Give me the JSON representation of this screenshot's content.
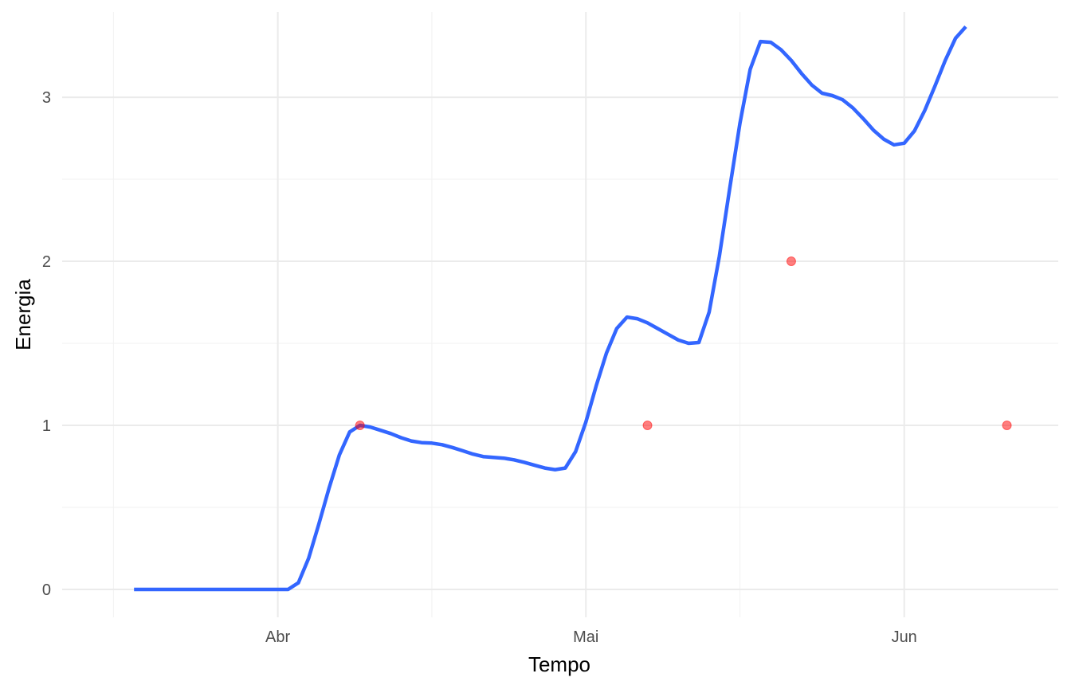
{
  "chart_data": {
    "type": "line",
    "title": "",
    "xlabel": "Tempo",
    "ylabel": "Energia",
    "grid": true,
    "legend": "none",
    "x_axis": {
      "type": "date",
      "range": [
        "2021-03-11",
        "2021-06-16"
      ],
      "ticks": [
        {
          "date": "2021-04-01",
          "label": "Abr"
        },
        {
          "date": "2021-05-01",
          "label": "Mai"
        },
        {
          "date": "2021-06-01",
          "label": "Jun"
        }
      ],
      "minor_ticks": [
        "2021-03-16",
        "2021-04-16",
        "2021-05-16"
      ]
    },
    "y_axis": {
      "range": [
        -0.17,
        3.52
      ],
      "ticks": [
        0,
        1,
        2,
        3
      ],
      "tick_labels": [
        "0",
        "1",
        "2",
        "3"
      ],
      "minor_ticks": [
        0.5,
        1.5,
        2.5
      ]
    },
    "series": [
      {
        "kind": "line",
        "color": "#3366ff",
        "points": [
          [
            "2021-03-18",
            0.0
          ],
          [
            "2021-03-19",
            0.0
          ],
          [
            "2021-03-20",
            0.0
          ],
          [
            "2021-03-21",
            0.0
          ],
          [
            "2021-03-22",
            0.0
          ],
          [
            "2021-03-23",
            0.0
          ],
          [
            "2021-03-24",
            0.0
          ],
          [
            "2021-03-25",
            0.0
          ],
          [
            "2021-03-26",
            0.0
          ],
          [
            "2021-03-27",
            0.0
          ],
          [
            "2021-03-28",
            0.0
          ],
          [
            "2021-03-29",
            0.0
          ],
          [
            "2021-03-30",
            0.0
          ],
          [
            "2021-03-31",
            0.0
          ],
          [
            "2021-04-01",
            0.0
          ],
          [
            "2021-04-02",
            0.0
          ],
          [
            "2021-04-03",
            0.04
          ],
          [
            "2021-04-04",
            0.19
          ],
          [
            "2021-04-05",
            0.4
          ],
          [
            "2021-04-06",
            0.62
          ],
          [
            "2021-04-07",
            0.82
          ],
          [
            "2021-04-08",
            0.96
          ],
          [
            "2021-04-09",
            1.0
          ],
          [
            "2021-04-10",
            0.99
          ],
          [
            "2021-04-11",
            0.97
          ],
          [
            "2021-04-12",
            0.95
          ],
          [
            "2021-04-13",
            0.925
          ],
          [
            "2021-04-14",
            0.905
          ],
          [
            "2021-04-15",
            0.895
          ],
          [
            "2021-04-16",
            0.892
          ],
          [
            "2021-04-17",
            0.882
          ],
          [
            "2021-04-18",
            0.865
          ],
          [
            "2021-04-19",
            0.845
          ],
          [
            "2021-04-20",
            0.825
          ],
          [
            "2021-04-21",
            0.81
          ],
          [
            "2021-04-22",
            0.805
          ],
          [
            "2021-04-23",
            0.8
          ],
          [
            "2021-04-24",
            0.79
          ],
          [
            "2021-04-25",
            0.775
          ],
          [
            "2021-04-26",
            0.757
          ],
          [
            "2021-04-27",
            0.74
          ],
          [
            "2021-04-28",
            0.73
          ],
          [
            "2021-04-29",
            0.74
          ],
          [
            "2021-04-30",
            0.84
          ],
          [
            "2021-05-01",
            1.02
          ],
          [
            "2021-05-02",
            1.24
          ],
          [
            "2021-05-03",
            1.44
          ],
          [
            "2021-05-04",
            1.59
          ],
          [
            "2021-05-05",
            1.66
          ],
          [
            "2021-05-06",
            1.65
          ],
          [
            "2021-05-07",
            1.625
          ],
          [
            "2021-05-08",
            1.59
          ],
          [
            "2021-05-09",
            1.555
          ],
          [
            "2021-05-10",
            1.52
          ],
          [
            "2021-05-11",
            1.5
          ],
          [
            "2021-05-12",
            1.505
          ],
          [
            "2021-05-13",
            1.69
          ],
          [
            "2021-05-14",
            2.03
          ],
          [
            "2021-05-15",
            2.44
          ],
          [
            "2021-05-16",
            2.84
          ],
          [
            "2021-05-17",
            3.17
          ],
          [
            "2021-05-18",
            3.34
          ],
          [
            "2021-05-19",
            3.335
          ],
          [
            "2021-05-20",
            3.29
          ],
          [
            "2021-05-21",
            3.225
          ],
          [
            "2021-05-22",
            3.145
          ],
          [
            "2021-05-23",
            3.075
          ],
          [
            "2021-05-24",
            3.025
          ],
          [
            "2021-05-25",
            3.01
          ],
          [
            "2021-05-26",
            2.985
          ],
          [
            "2021-05-27",
            2.935
          ],
          [
            "2021-05-28",
            2.87
          ],
          [
            "2021-05-29",
            2.8
          ],
          [
            "2021-05-30",
            2.745
          ],
          [
            "2021-05-31",
            2.71
          ],
          [
            "2021-06-01",
            2.72
          ],
          [
            "2021-06-02",
            2.795
          ],
          [
            "2021-06-03",
            2.92
          ],
          [
            "2021-06-04",
            3.07
          ],
          [
            "2021-06-05",
            3.225
          ],
          [
            "2021-06-06",
            3.36
          ],
          [
            "2021-06-07",
            3.43
          ]
        ]
      },
      {
        "kind": "scatter",
        "color": "#ff0000",
        "points": [
          [
            "2021-04-09",
            1
          ],
          [
            "2021-05-07",
            1
          ],
          [
            "2021-05-21",
            2
          ],
          [
            "2021-06-11",
            1
          ]
        ]
      }
    ]
  }
}
